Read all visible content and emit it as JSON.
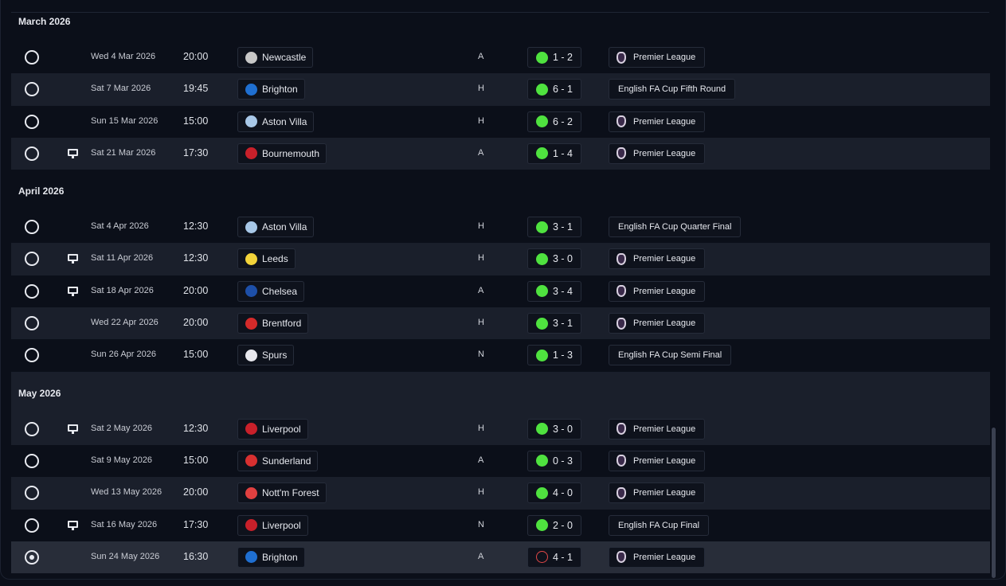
{
  "colors": {
    "win": "#4fe23f",
    "loss": "#e24848",
    "background": "#0b0f19",
    "row_alt": "#1a1f2b",
    "row_selected": "#282d39"
  },
  "months": [
    {
      "label": "March 2026",
      "fixtures": [
        {
          "date": "Wed 4 Mar 2026",
          "time": "20:00",
          "opponent": "Newcastle",
          "crest": "#c8c8c8",
          "venue": "A",
          "result": "win",
          "score": "1 - 2",
          "competition": "Premier League",
          "pl": true,
          "tv": false,
          "stripe": "dark"
        },
        {
          "date": "Sat 7 Mar 2026",
          "time": "19:45",
          "opponent": "Brighton",
          "crest": "#1f6fd1",
          "venue": "H",
          "result": "win",
          "score": "6 - 1",
          "competition": "English FA Cup Fifth Round",
          "pl": false,
          "tv": false,
          "stripe": "light"
        },
        {
          "date": "Sun 15 Mar 2026",
          "time": "15:00",
          "opponent": "Aston Villa",
          "crest": "#a8c8e8",
          "venue": "H",
          "result": "win",
          "score": "6 - 2",
          "competition": "Premier League",
          "pl": true,
          "tv": false,
          "stripe": "dark"
        },
        {
          "date": "Sat 21 Mar 2026",
          "time": "17:30",
          "opponent": "Bournemouth",
          "crest": "#c8202a",
          "venue": "A",
          "result": "win",
          "score": "1 - 4",
          "competition": "Premier League",
          "pl": true,
          "tv": true,
          "stripe": "light"
        }
      ]
    },
    {
      "label": "April 2026",
      "fixtures": [
        {
          "date": "Sat 4 Apr 2026",
          "time": "12:30",
          "opponent": "Aston Villa",
          "crest": "#a8c8e8",
          "venue": "H",
          "result": "win",
          "score": "3 - 1",
          "competition": "English FA Cup Quarter Final",
          "pl": false,
          "tv": false,
          "stripe": "dark"
        },
        {
          "date": "Sat 11 Apr 2026",
          "time": "12:30",
          "opponent": "Leeds",
          "crest": "#f2d33a",
          "venue": "H",
          "result": "win",
          "score": "3 - 0",
          "competition": "Premier League",
          "pl": true,
          "tv": true,
          "stripe": "light"
        },
        {
          "date": "Sat 18 Apr 2026",
          "time": "20:00",
          "opponent": "Chelsea",
          "crest": "#1d4fa8",
          "venue": "A",
          "result": "win",
          "score": "3 - 4",
          "competition": "Premier League",
          "pl": true,
          "tv": true,
          "stripe": "dark"
        },
        {
          "date": "Wed 22 Apr 2026",
          "time": "20:00",
          "opponent": "Brentford",
          "crest": "#d42a2a",
          "venue": "H",
          "result": "win",
          "score": "3 - 1",
          "competition": "Premier League",
          "pl": true,
          "tv": false,
          "stripe": "light"
        },
        {
          "date": "Sun 26 Apr 2026",
          "time": "15:00",
          "opponent": "Spurs",
          "crest": "#e8e8ee",
          "venue": "N",
          "result": "win",
          "score": "1 - 3",
          "competition": "English FA Cup Semi Final",
          "pl": false,
          "tv": false,
          "stripe": "dark"
        }
      ]
    },
    {
      "label": "May 2026",
      "fixtures": [
        {
          "date": "Sat 2 May 2026",
          "time": "12:30",
          "opponent": "Liverpool",
          "crest": "#c8202a",
          "venue": "H",
          "result": "win",
          "score": "3 - 0",
          "competition": "Premier League",
          "pl": true,
          "tv": true,
          "stripe": "light"
        },
        {
          "date": "Sat 9 May 2026",
          "time": "15:00",
          "opponent": "Sunderland",
          "crest": "#d83030",
          "venue": "A",
          "result": "win",
          "score": "0 - 3",
          "competition": "Premier League",
          "pl": true,
          "tv": false,
          "stripe": "dark"
        },
        {
          "date": "Wed 13 May 2026",
          "time": "20:00",
          "opponent": "Nott'm Forest",
          "crest": "#e04040",
          "venue": "H",
          "result": "win",
          "score": "4 - 0",
          "competition": "Premier League",
          "pl": true,
          "tv": false,
          "stripe": "light"
        },
        {
          "date": "Sat 16 May 2026",
          "time": "17:30",
          "opponent": "Liverpool",
          "crest": "#c8202a",
          "venue": "N",
          "result": "win",
          "score": "2 - 0",
          "competition": "English FA Cup Final",
          "pl": false,
          "tv": true,
          "stripe": "dark"
        },
        {
          "date": "Sun 24 May 2026",
          "time": "16:30",
          "opponent": "Brighton",
          "crest": "#1f6fd1",
          "venue": "A",
          "result": "loss",
          "score": "4 - 1",
          "competition": "Premier League",
          "pl": true,
          "tv": false,
          "stripe": "selected",
          "selected": true
        }
      ]
    }
  ]
}
